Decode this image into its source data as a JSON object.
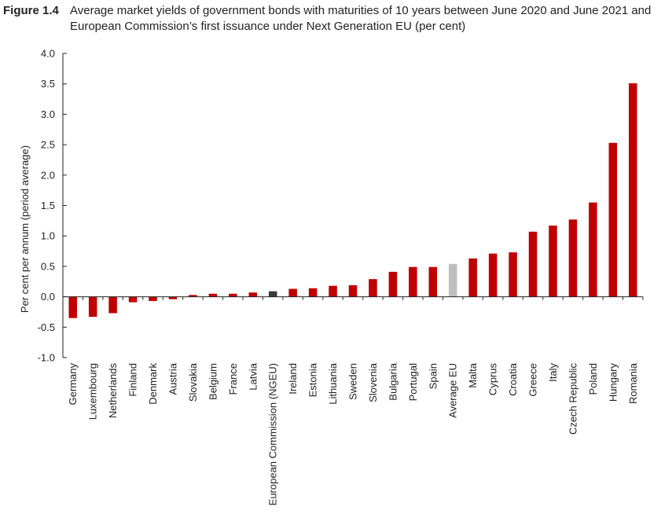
{
  "figure": {
    "label": "Figure 1.4",
    "title": "Average market yields of government bonds with maturities of 10 years between June 2020 and June 2021 and European Commission’s first issuance under Next Generation EU (per cent)"
  },
  "colors": {
    "country": "#c00000",
    "ngeu": "#3a3a3a",
    "average": "#bfbfbf",
    "axis": "#222222"
  },
  "chart_data": {
    "type": "bar",
    "ylabel": "Per cent per annum (period average)",
    "xlabel": "",
    "ylim": [
      -1.0,
      4.0
    ],
    "yticks": [
      "4.0",
      "3.5",
      "3.0",
      "2.5",
      "2.0",
      "1.5",
      "1.0",
      "0.5",
      "0.0",
      "-0.5",
      "-1.0"
    ],
    "grid": false,
    "categories": [
      "Germany",
      "Luxembourg",
      "Netherlands",
      "Finland",
      "Denmark",
      "Austria",
      "Slovakia",
      "Belgium",
      "France",
      "Latvia",
      "European Commission (NGEU)",
      "Ireland",
      "Estonia",
      "Lithuania",
      "Sweden",
      "Slovenia",
      "Bulgaria",
      "Portugal",
      "Spain",
      "Average EU",
      "Malta",
      "Cyprus",
      "Croatia",
      "Greece",
      "Italy",
      "Czech Republic",
      "Poland",
      "Hungary",
      "Romania"
    ],
    "values": [
      -0.35,
      -0.33,
      -0.27,
      -0.09,
      -0.07,
      -0.04,
      0.03,
      0.05,
      0.05,
      0.07,
      0.09,
      0.13,
      0.14,
      0.18,
      0.19,
      0.29,
      0.41,
      0.49,
      0.49,
      0.54,
      0.63,
      0.71,
      0.73,
      1.07,
      1.17,
      1.27,
      1.55,
      2.53,
      3.51
    ],
    "bar_kinds": [
      "country",
      "country",
      "country",
      "country",
      "country",
      "country",
      "country",
      "country",
      "country",
      "country",
      "ngeu",
      "country",
      "country",
      "country",
      "country",
      "country",
      "country",
      "country",
      "country",
      "average",
      "country",
      "country",
      "country",
      "country",
      "country",
      "country",
      "country",
      "country",
      "country"
    ]
  }
}
